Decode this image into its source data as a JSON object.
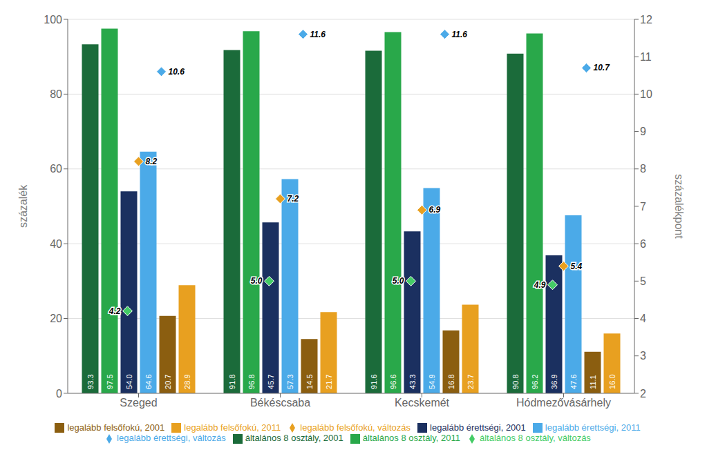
{
  "chart_data": {
    "type": "bar",
    "categories": [
      "Szeged",
      "Békéscsaba",
      "Kecskemét",
      "Hódmezővásárhely"
    ],
    "ylabel": "százalék",
    "y2label": "százalékpont",
    "ylim": [
      0,
      100
    ],
    "yticks": [
      0,
      20,
      40,
      60,
      80,
      100
    ],
    "y2lim": [
      2,
      12
    ],
    "y2ticks": [
      2,
      3,
      4,
      5,
      6,
      7,
      8,
      9,
      10,
      11,
      12
    ],
    "grid": true,
    "legend": "bottom",
    "data_labels": true,
    "series": [
      {
        "name": "általános 8 osztály, 2001",
        "type": "bar",
        "color": "#1b6b3a",
        "values": [
          93.3,
          91.8,
          91.6,
          90.8
        ],
        "value_labels": [
          "93.3",
          "91.8",
          "91.6",
          "90.8"
        ]
      },
      {
        "name": "általános 8 osztály, 2011",
        "type": "bar",
        "color": "#29a84a",
        "values": [
          97.5,
          96.8,
          96.6,
          96.2
        ],
        "value_labels": [
          "97.5",
          "96.8",
          "96.6",
          "96.2"
        ]
      },
      {
        "name": "legalább érettségi, 2001",
        "type": "bar",
        "color": "#1b3060",
        "values": [
          54.0,
          45.7,
          43.3,
          36.9
        ],
        "value_labels": [
          "54.0",
          "45.7",
          "43.3",
          "36.9"
        ]
      },
      {
        "name": "legalább érettségi, 2011",
        "type": "bar",
        "color": "#4baae8",
        "values": [
          64.6,
          57.3,
          54.9,
          47.6
        ],
        "value_labels": [
          "64.6",
          "57.3",
          "54.9",
          "47.6"
        ]
      },
      {
        "name": "legalább felsőfokú, 2001",
        "type": "bar",
        "color": "#8b5e10",
        "values": [
          20.7,
          14.5,
          16.8,
          11.1
        ],
        "value_labels": [
          "20.7",
          "14.5",
          "16.8",
          "11.1"
        ]
      },
      {
        "name": "legalább felsőfokú, 2011",
        "type": "bar",
        "color": "#e8a020",
        "values": [
          28.9,
          21.7,
          23.7,
          16.0
        ],
        "value_labels": [
          "28.9",
          "21.7",
          "23.7",
          "16.0"
        ]
      },
      {
        "name": "általános 8 osztály, változás",
        "type": "scatter",
        "axis": "y2",
        "marker": "diamond",
        "color": "#44cc66",
        "values": [
          4.2,
          5.0,
          5.0,
          4.9
        ],
        "value_labels": [
          "4.2",
          "5.0",
          "5.0",
          "4.9"
        ]
      },
      {
        "name": "legalább érettségi, változás",
        "type": "scatter",
        "axis": "y2",
        "marker": "diamond",
        "color": "#4baae8",
        "values": [
          10.6,
          11.6,
          11.6,
          10.7
        ],
        "value_labels": [
          "10.6",
          "11.6",
          "11.6",
          "10.7"
        ]
      },
      {
        "name": "legalább felsőfokú, változás",
        "type": "scatter",
        "axis": "y2",
        "marker": "diamond",
        "color": "#e8a020",
        "values": [
          8.2,
          7.2,
          6.9,
          5.4
        ],
        "value_labels": [
          "8.2",
          "7.2",
          "6.9",
          "5.4"
        ]
      }
    ]
  }
}
